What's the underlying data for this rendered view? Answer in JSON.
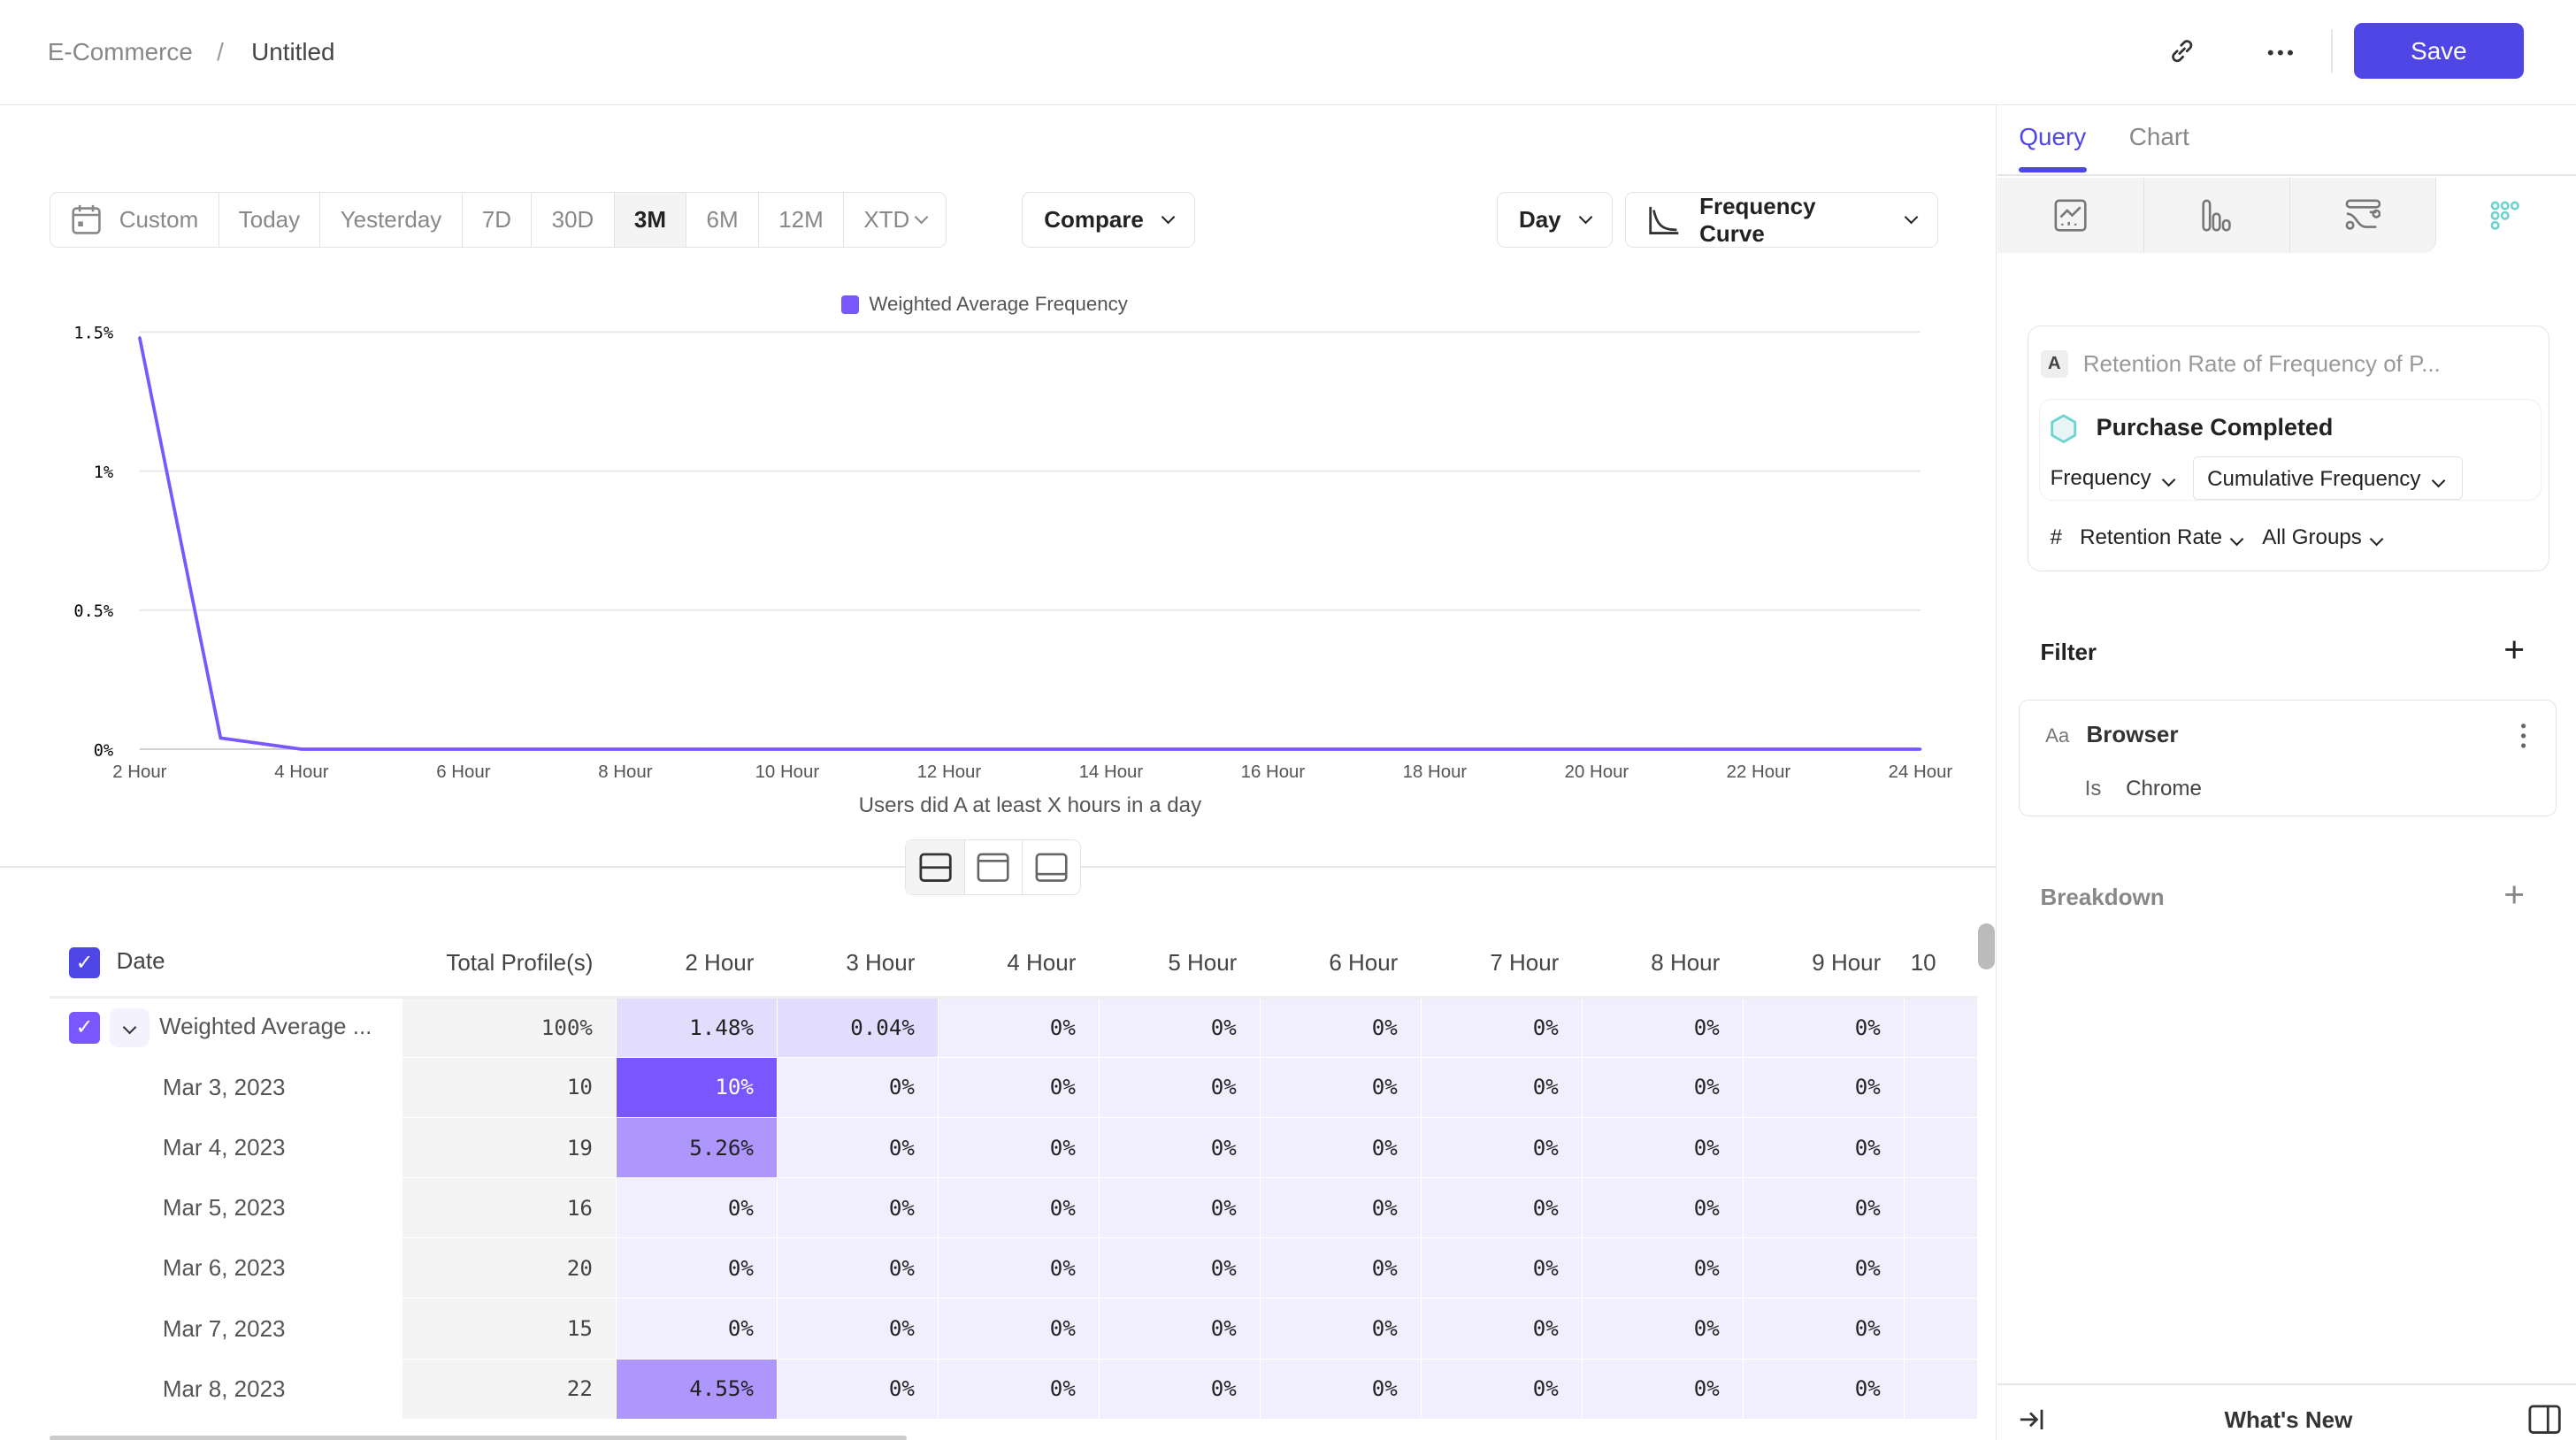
{
  "breadcrumb": {
    "parent": "E-Commerce",
    "separator": "/",
    "current": "Untitled"
  },
  "header": {
    "save_label": "Save",
    "link_icon": "link-icon",
    "more_icon": "more-icon"
  },
  "date_range": {
    "items": [
      "Custom",
      "Today",
      "Yesterday",
      "7D",
      "30D",
      "3M",
      "6M",
      "12M",
      "XTD"
    ],
    "selected": "3M"
  },
  "controls": {
    "compare": "Compare",
    "granularity": "Day",
    "chart_type": "Frequency Curve"
  },
  "chart_data": {
    "type": "line",
    "legend": [
      "Weighted Average Frequency"
    ],
    "legend_placement": "top",
    "xlabel": "Users did A at least X hours in a day",
    "x_ticks": [
      "2 Hour",
      "4 Hour",
      "6 Hour",
      "8 Hour",
      "10 Hour",
      "12 Hour",
      "14 Hour",
      "16 Hour",
      "18 Hour",
      "20 Hour",
      "22 Hour",
      "24 Hour"
    ],
    "y_ticks": [
      "0%",
      "0.5%",
      "1%",
      "1.5%"
    ],
    "ylim": [
      0,
      1.5
    ],
    "x": [
      2,
      3,
      4,
      5,
      6,
      7,
      8,
      9,
      10,
      11,
      12,
      13,
      14,
      15,
      16,
      17,
      18,
      19,
      20,
      21,
      22,
      23,
      24
    ],
    "series": [
      {
        "name": "Weighted Average Frequency",
        "values": [
          1.48,
          0.04,
          0,
          0,
          0,
          0,
          0,
          0,
          0,
          0,
          0,
          0,
          0,
          0,
          0,
          0,
          0,
          0,
          0,
          0,
          0,
          0,
          0
        ]
      }
    ],
    "color": "#7857ff",
    "grid": true
  },
  "table": {
    "headers": [
      "Date",
      "Total Profile(s)",
      "2 Hour",
      "3 Hour",
      "4 Hour",
      "5 Hour",
      "6 Hour",
      "7 Hour",
      "8 Hour",
      "9 Hour",
      "10"
    ],
    "rows": [
      {
        "date": "Weighted Average ...",
        "total": "100%",
        "values": [
          "1.48%",
          "0.04%",
          "0%",
          "0%",
          "0%",
          "0%",
          "0%",
          "0%",
          ""
        ]
      },
      {
        "date": "Mar 3, 2023",
        "total": "10",
        "values": [
          "10%",
          "0%",
          "0%",
          "0%",
          "0%",
          "0%",
          "0%",
          "0%",
          ""
        ]
      },
      {
        "date": "Mar 4, 2023",
        "total": "19",
        "values": [
          "5.26%",
          "0%",
          "0%",
          "0%",
          "0%",
          "0%",
          "0%",
          "0%",
          ""
        ]
      },
      {
        "date": "Mar 5, 2023",
        "total": "16",
        "values": [
          "0%",
          "0%",
          "0%",
          "0%",
          "0%",
          "0%",
          "0%",
          "0%",
          ""
        ]
      },
      {
        "date": "Mar 6, 2023",
        "total": "20",
        "values": [
          "0%",
          "0%",
          "0%",
          "0%",
          "0%",
          "0%",
          "0%",
          "0%",
          ""
        ]
      },
      {
        "date": "Mar 7, 2023",
        "total": "15",
        "values": [
          "0%",
          "0%",
          "0%",
          "0%",
          "0%",
          "0%",
          "0%",
          "0%",
          ""
        ]
      },
      {
        "date": "Mar 8, 2023",
        "total": "22",
        "values": [
          "4.55%",
          "0%",
          "0%",
          "0%",
          "0%",
          "0%",
          "0%",
          "0%",
          ""
        ]
      }
    ]
  },
  "panel": {
    "tabs": [
      "Query",
      "Chart"
    ],
    "active_tab": "Query",
    "metric": {
      "letter": "A",
      "title": "Retention Rate of Frequency of P...",
      "event": "Purchase Completed",
      "freq": "Frequency",
      "freq_type": "Cumulative Frequency",
      "hash": "#",
      "measure": "Retention Rate",
      "groups": "All Groups"
    },
    "filter": {
      "title": "Filter",
      "type_icon": "Aa",
      "property": "Browser",
      "op": "Is",
      "value": "Chrome"
    },
    "breakdown": {
      "title": "Breakdown"
    },
    "footer": {
      "whats_new": "What's New"
    }
  },
  "colors": {
    "accent": "#4f46e5",
    "cell_max": "#7857ff",
    "cell_mid": "#ad97fd",
    "cell_low": "#e3ddfd",
    "cell_zero": "#f1eefe"
  }
}
